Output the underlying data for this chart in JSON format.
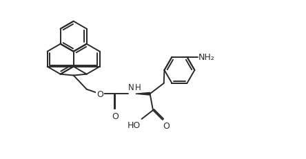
{
  "bg_color": "#ffffff",
  "line_color": "#2a2a2a",
  "line_width": 1.4,
  "figsize": [
    4.44,
    2.32
  ],
  "dpi": 100,
  "xlim": [
    -0.5,
    10.5
  ],
  "ylim": [
    -0.8,
    5.5
  ],
  "nh2_label": "NH₂",
  "nh_label": "H",
  "o_label": "O",
  "oh_label": "HO"
}
